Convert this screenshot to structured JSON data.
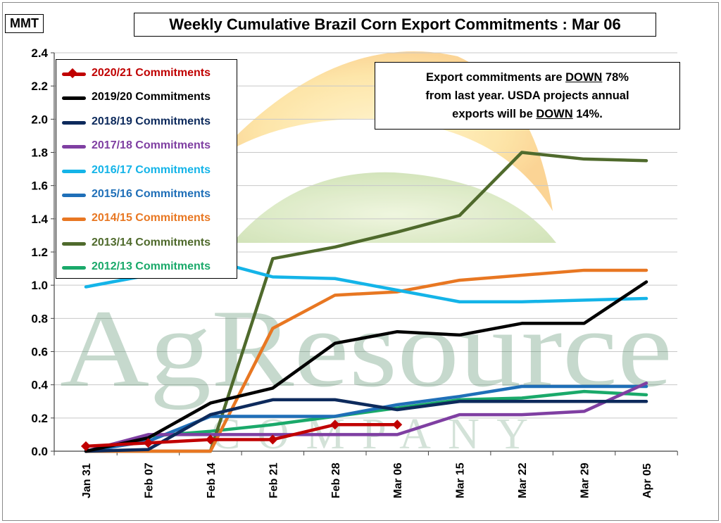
{
  "chart_data": {
    "type": "line",
    "title": "Weekly Cumulative Brazil Corn Export Commitments : Mar 06",
    "ylabel": "MMT",
    "xlabel": "",
    "ylim": [
      0,
      2.4
    ],
    "ytick_step": 0.2,
    "y_tick_labels": [
      "0.0",
      "0.2",
      "0.4",
      "0.6",
      "0.8",
      "1.0",
      "1.2",
      "1.4",
      "1.6",
      "1.8",
      "2.0",
      "2.2",
      "2.4"
    ],
    "grid": true,
    "legend_position": "top-left",
    "categories": [
      "Jan 31",
      "Feb 07",
      "Feb 14",
      "Feb 21",
      "Feb 28",
      "Mar 06",
      "Mar 15",
      "Mar 22",
      "Mar 29",
      "Apr 05"
    ],
    "annotation": {
      "line1_pre": "Export commitments are ",
      "line1_u": "DOWN",
      "line1_post": "  78%",
      "line2": "from last year.  USDA projects annual",
      "line3_pre": "exports will be ",
      "line3_u": "DOWN",
      "line3_post": " 14%."
    },
    "watermark": {
      "line1": "AgResource",
      "line2": "COMPANY"
    },
    "series": [
      {
        "name": "2020/21 Commitments",
        "color": "#c00000",
        "marker": "diamond",
        "values": [
          0.03,
          0.05,
          0.07,
          0.07,
          0.16,
          0.16,
          null,
          null,
          null,
          null
        ]
      },
      {
        "name": "2019/20 Commitments",
        "color": "#000000",
        "values": [
          0.0,
          0.08,
          0.29,
          0.38,
          0.65,
          0.72,
          0.7,
          0.77,
          0.77,
          1.02
        ]
      },
      {
        "name": "2018/19 Commitments",
        "color": "#0d2a5c",
        "values": [
          0.0,
          0.01,
          0.22,
          0.31,
          0.31,
          0.25,
          0.3,
          0.3,
          0.3,
          0.3
        ]
      },
      {
        "name": "2017/18 Commitments",
        "color": "#7f3fa2",
        "values": [
          0.0,
          0.1,
          0.1,
          0.1,
          0.1,
          0.1,
          0.22,
          0.22,
          0.24,
          0.41
        ]
      },
      {
        "name": "2016/17 Commitments",
        "color": "#14b4e8",
        "values": [
          0.99,
          1.06,
          1.15,
          1.05,
          1.04,
          0.97,
          0.9,
          0.9,
          0.91,
          0.92
        ]
      },
      {
        "name": "2015/16 Commitments",
        "color": "#1f6fb8",
        "values": [
          0.0,
          0.06,
          0.21,
          0.21,
          0.21,
          0.28,
          0.33,
          0.39,
          0.39,
          0.39
        ]
      },
      {
        "name": "2014/15 Commitments",
        "color": "#e87722",
        "values": [
          0.0,
          0.0,
          0.0,
          0.74,
          0.94,
          0.96,
          1.03,
          1.06,
          1.09,
          1.09
        ]
      },
      {
        "name": "2013/14 Commitments",
        "color": "#4f6a2c",
        "values": [
          0.0,
          0.0,
          0.0,
          1.16,
          1.23,
          1.32,
          1.42,
          1.8,
          1.76,
          1.75
        ]
      },
      {
        "name": "2012/13 Commitments",
        "color": "#1aa96a",
        "values": [
          0.0,
          0.09,
          0.12,
          0.16,
          0.21,
          0.26,
          0.31,
          0.32,
          0.36,
          0.34
        ]
      }
    ]
  }
}
